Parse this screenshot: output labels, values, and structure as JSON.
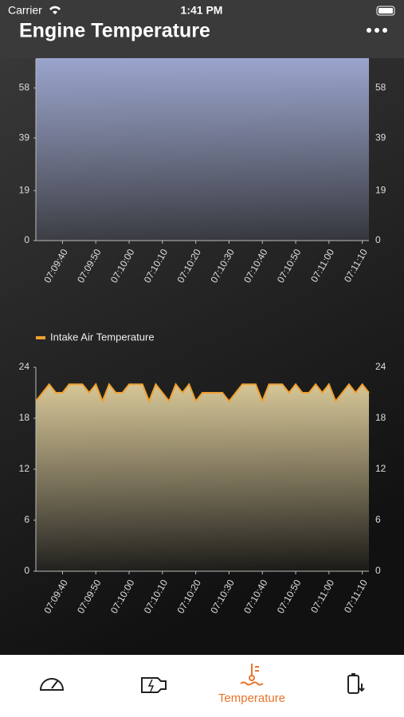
{
  "status_bar": {
    "carrier": "Carrier",
    "time": "1:41 PM"
  },
  "header": {
    "title": "Engine Temperature"
  },
  "chart_data": [
    {
      "type": "area",
      "x": [
        "07:09:32",
        "07:11:12"
      ],
      "series": [
        {
          "color": "#9aa4cc",
          "values": [
            69,
            69
          ]
        }
      ],
      "xlim": [
        "07:09:32",
        "07:11:12"
      ],
      "xticks": [
        "07:09:40",
        "07:09:50",
        "07:10:00",
        "07:10:10",
        "07:10:20",
        "07:10:30",
        "07:10:40",
        "07:10:50",
        "07:11:00",
        "07:11:10"
      ],
      "ylim": [
        0,
        69
      ],
      "yticks": [
        0,
        19,
        39,
        58
      ],
      "legend": false
    },
    {
      "type": "area",
      "x": [
        "07:09:32",
        "07:09:34",
        "07:09:36",
        "07:09:38",
        "07:09:40",
        "07:09:42",
        "07:09:44",
        "07:09:46",
        "07:09:48",
        "07:09:50",
        "07:09:52",
        "07:09:54",
        "07:09:56",
        "07:09:58",
        "07:10:00",
        "07:10:02",
        "07:10:04",
        "07:10:06",
        "07:10:08",
        "07:10:10",
        "07:10:12",
        "07:10:14",
        "07:10:16",
        "07:10:18",
        "07:10:20",
        "07:10:22",
        "07:10:24",
        "07:10:26",
        "07:10:28",
        "07:10:30",
        "07:10:32",
        "07:10:34",
        "07:10:36",
        "07:10:38",
        "07:10:40",
        "07:10:42",
        "07:10:44",
        "07:10:46",
        "07:10:48",
        "07:10:50",
        "07:10:52",
        "07:10:54",
        "07:10:56",
        "07:10:58",
        "07:11:00",
        "07:11:02",
        "07:11:04",
        "07:11:06",
        "07:11:08",
        "07:11:10",
        "07:11:12"
      ],
      "series": [
        {
          "name": "Intake Air Temperature",
          "color": "#f0a030",
          "values": [
            20,
            21,
            22,
            21,
            21,
            22,
            22,
            22,
            21,
            22,
            20,
            22,
            21,
            21,
            22,
            22,
            22,
            20,
            22,
            21,
            20,
            22,
            21,
            22,
            20,
            21,
            21,
            21,
            21,
            20,
            21,
            22,
            22,
            22,
            20,
            22,
            22,
            22,
            21,
            22,
            21,
            21,
            22,
            21,
            22,
            20,
            21,
            22,
            21,
            22,
            21
          ]
        }
      ],
      "xlim": [
        "07:09:32",
        "07:11:12"
      ],
      "xticks": [
        "07:09:40",
        "07:09:50",
        "07:10:00",
        "07:10:10",
        "07:10:20",
        "07:10:30",
        "07:10:40",
        "07:10:50",
        "07:11:00",
        "07:11:10"
      ],
      "ylim": [
        0,
        24
      ],
      "yticks": [
        0,
        6,
        12,
        18,
        24
      ],
      "legend": "top-left"
    }
  ],
  "tab_bar": {
    "active_label": "Temperature"
  }
}
